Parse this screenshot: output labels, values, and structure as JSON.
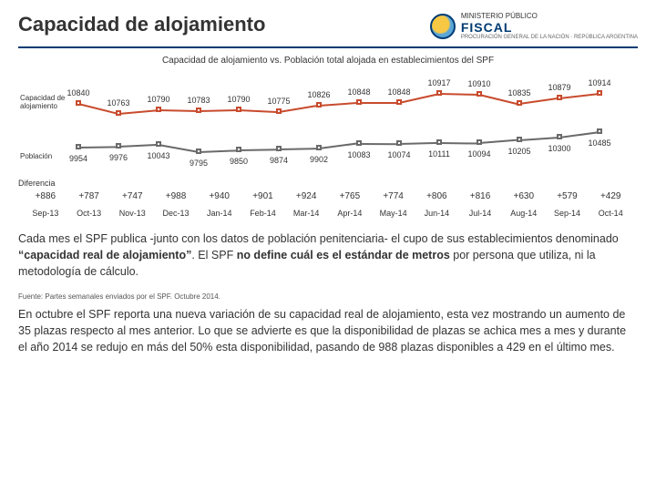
{
  "header": {
    "title": "Capacidad de alojamiento",
    "ministry": "MINISTERIO PÚBLICO",
    "fiscal": "FISCAL",
    "sub": "PROCURACIÓN GENERAL DE LA NACIÓN · REPÚBLICA ARGENTINA"
  },
  "chart": {
    "title": "Capacidad de alojamiento vs. Población total alojada en establecimientos del SPF",
    "series1": {
      "label": "Capacidad de alojamiento",
      "color": "#c84b2d",
      "values": [
        10840,
        10763,
        10790,
        10783,
        10790,
        10775,
        10826,
        10848,
        10848,
        10917,
        10910,
        10835,
        10879,
        10914
      ]
    },
    "series2": {
      "label": "Población",
      "color": "#6a6a6a",
      "values": [
        9954,
        9976,
        10043,
        9795,
        9850,
        9874,
        9902,
        10083,
        10074,
        10111,
        10094,
        10205,
        10300,
        10485
      ]
    },
    "yTop": 9,
    "yBot": 62,
    "yTop2": 72,
    "yBot2": 82,
    "xStart": 60,
    "xStep": 44
  },
  "diff": {
    "label": "Diferencia",
    "values": [
      "+886",
      "+787",
      "+747",
      "+988",
      "+940",
      "+901",
      "+924",
      "+765",
      "+774",
      "+806",
      "+816",
      "+630",
      "+579",
      "+429"
    ]
  },
  "months": [
    "Sep-13",
    "Oct-13",
    "Nov-13",
    "Dec-13",
    "Jan-14",
    "Feb-14",
    "Mar-14",
    "Apr-14",
    "May-14",
    "Jun-14",
    "Jul-14",
    "Aug-14",
    "Sep-14",
    "Oct-14"
  ],
  "para1a": "Cada mes el SPF publica -junto con los datos de población penitenciaria- el cupo de sus establecimientos denominado ",
  "para1b": "“capacidad real de alojamiento”",
  "para1c": ". El SPF ",
  "para1d": "no define cuál es el estándar de metros",
  "para1e": " por persona que utiliza, ni la metodología de cálculo.",
  "source": "Fuente: Partes semanales enviados por el SPF. Octubre 2014.",
  "para2": "En octubre el SPF reporta una nueva variación de su capacidad real de alojamiento, esta vez mostrando un aumento de 35 plazas respecto al mes anterior. Lo que se advierte es que la disponibilidad de plazas se achica mes a mes y durante el año 2014 se redujo en más del 50% esta disponibilidad, pasando de 988 plazas disponibles a 429 en el último mes."
}
